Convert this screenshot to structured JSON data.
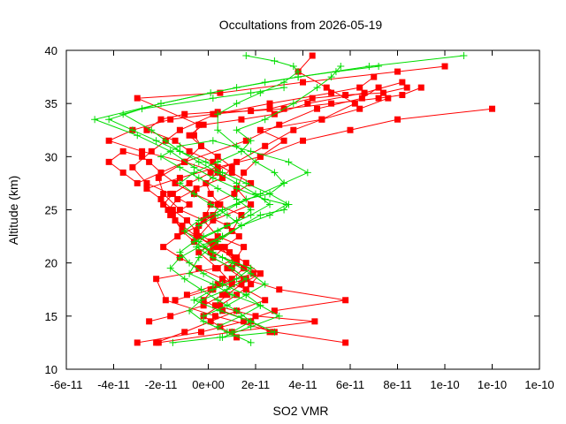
{
  "chart_data": {
    "type": "line",
    "title": "Occultations from 2026-05-19",
    "xlabel": "SO2 VMR",
    "ylabel": "Altitude (km)",
    "xlim": [
      -6e-11,
      1.4e-10
    ],
    "ylim": [
      10,
      40
    ],
    "x_tick_values": [
      -6e-11,
      -4e-11,
      -2e-11,
      0,
      2e-11,
      4e-11,
      6e-11,
      8e-11,
      1e-10,
      1.2e-10,
      1.4e-10
    ],
    "x_tick_labels": [
      "-6e-11",
      "-4e-11",
      "-2e-11",
      "0e+00",
      "2e-11",
      "4e-11",
      "6e-11",
      "8e-11",
      "1e-10",
      "1e-10",
      "1e-10"
    ],
    "y_tick_values": [
      10,
      15,
      20,
      25,
      30,
      35,
      40
    ],
    "y_tick_labels": [
      "10",
      "15",
      "20",
      "25",
      "30",
      "35",
      "40"
    ],
    "grid": false,
    "legend": "none",
    "series": [
      {
        "color": "#ff0000",
        "marker": "square",
        "x": [
          -3e-11,
          -3e-12,
          1.5e-11,
          2.8e-11,
          5.8e-11,
          3e-11,
          1.5e-11,
          8e-12,
          1.2e-11,
          2e-12,
          -4e-12,
          2e-12,
          1.8e-11,
          1.2e-11,
          1.5e-11,
          2.2e-11,
          3.2e-11,
          2.2e-11,
          4.8e-11,
          6.2e-11,
          5e-11,
          3.8e-11,
          4.4e-11
        ],
        "y": [
          12.5,
          13.5,
          14.5,
          15.5,
          16.5,
          17.5,
          18.5,
          19.5,
          20.5,
          21.5,
          22.5,
          24,
          25.5,
          27,
          28.5,
          30,
          31.5,
          32.5,
          33.5,
          35,
          36.5,
          38,
          39.5
        ]
      },
      {
        "color": "#ff0000",
        "marker": "square",
        "x": [
          5.8e-11,
          2.8e-11,
          3e-12,
          -1.8e-11,
          -2.2e-11,
          3e-12,
          1.2e-11,
          1.5e-11,
          4e-12,
          -2e-12,
          -1.2e-11,
          -1.9e-11,
          -2.1e-11,
          -1e-11,
          -3e-12,
          -6e-12,
          -4e-12,
          -3e-11,
          5e-12,
          4e-11,
          8e-11,
          1e-10
        ],
        "y": [
          12.5,
          13.5,
          15,
          16.5,
          18.5,
          19.5,
          20.5,
          21.5,
          22.5,
          24,
          25,
          26.5,
          28,
          29.5,
          31,
          32,
          33,
          35.5,
          36,
          37,
          38,
          38.5
        ]
      },
      {
        "color": "#ff0000",
        "marker": "square",
        "x": [
          -2.1e-11,
          1e-11,
          4.5e-11,
          2e-11,
          3e-12,
          8e-12,
          1.4e-11,
          2.2e-11,
          1.2e-11,
          5e-12,
          -1.1e-11,
          -1.5e-11,
          -8e-12,
          -1.6e-11,
          -2.6e-11,
          -3.2e-11,
          -2.4e-11,
          -1.8e-11,
          -1.2e-11,
          3e-12,
          2.6e-11,
          5.2e-11,
          6.4e-11,
          7e-11
        ],
        "y": [
          12.5,
          13.5,
          14.5,
          15,
          16,
          17,
          18,
          19,
          20,
          21.5,
          23,
          24.5,
          25.5,
          26.5,
          27.5,
          29,
          30.5,
          31.5,
          32.5,
          34,
          35,
          36,
          36.5,
          37.5
        ]
      },
      {
        "color": "#ff0000",
        "marker": "square",
        "x": [
          -2.2e-11,
          -1e-11,
          1e-12,
          1.2e-11,
          2.4e-11,
          1.6e-11,
          6e-12,
          -4e-12,
          -1.2e-11,
          -1.9e-11,
          -1.3e-11,
          -4e-12,
          2e-12,
          5e-12,
          1e-12,
          -1e-12,
          4e-12,
          -1e-11,
          -2.8e-11,
          -4.2e-11,
          -3.2e-11,
          -1.6e-11,
          2e-12,
          2.6e-11,
          4.4e-11,
          5.8e-11,
          7.4e-11,
          8.4e-11
        ],
        "y": [
          12.5,
          13.5,
          14.5,
          15.5,
          16.5,
          17.5,
          18.5,
          19.5,
          20.5,
          21.5,
          22.5,
          23.5,
          24.5,
          25.5,
          26.5,
          27.5,
          28.5,
          29.5,
          30.5,
          31.5,
          32.5,
          33.5,
          34,
          34.5,
          35.5,
          35.8,
          36,
          36.5
        ]
      },
      {
        "color": "#ff0000",
        "marker": "square",
        "x": [
          -2.5e-11,
          -1.6e-11,
          -2e-12,
          6e-12,
          1e-11,
          4e-12,
          -4e-12,
          3e-12,
          1e-11,
          1.4e-11,
          4e-12,
          -6e-12,
          -1.4e-11,
          -2e-11,
          -2.5e-11,
          -2.8e-11,
          -3.6e-11,
          -4.2e-11,
          -3.6e-11,
          -3e-11,
          -1e-11,
          1.6e-11,
          3e-11,
          4.6e-11,
          6.5e-11,
          7.2e-11
        ],
        "y": [
          14.5,
          15,
          16,
          17,
          18,
          19.5,
          21,
          22,
          23,
          24.5,
          25.5,
          26.5,
          27.5,
          28.5,
          29.5,
          30,
          30.5,
          29.5,
          28.5,
          27.5,
          29.5,
          31.5,
          33,
          34.5,
          35.5,
          36.5
        ]
      },
      {
        "color": "#ff0000",
        "marker": "square",
        "x": [
          -1.4e-11,
          1e-12,
          1.6e-11,
          1e-11,
          2e-12,
          7e-12,
          1.3e-11,
          8e-12,
          -1e-12,
          1e-12,
          1.1e-11,
          1.8e-11,
          1e-11,
          2e-12,
          -8e-12,
          -1.4e-11,
          -2.6e-11,
          -2e-11,
          -1e-11,
          4e-12,
          1.8e-11,
          3.2e-11,
          5.2e-11,
          7.2e-11,
          8.2e-11,
          9e-11
        ],
        "y": [
          16.5,
          17.5,
          18.5,
          19.5,
          20.5,
          21.5,
          22.5,
          23.5,
          24.5,
          25.5,
          26.5,
          27.5,
          28.5,
          29.5,
          30.5,
          31.5,
          32.5,
          33.5,
          34,
          34.2,
          34.3,
          34.5,
          35,
          35.5,
          35.8,
          36.5
        ]
      },
      {
        "color": "#ff0000",
        "marker": "square",
        "x": [
          -9e-12,
          4e-12,
          1.9e-11,
          1.2e-11,
          1e-12,
          -6e-12,
          -1.1e-11,
          -1.4e-11,
          -1.7e-11,
          -1.3e-11,
          -5e-12,
          6e-12,
          1e-11,
          4e-12,
          -3e-12,
          -8e-12,
          -2e-12,
          1.4e-11,
          2.8e-11,
          4.2e-11,
          6.6e-11,
          8.2e-11
        ],
        "y": [
          17,
          18,
          19,
          20,
          21,
          22,
          23,
          24,
          25,
          26,
          27,
          28,
          29,
          30,
          31,
          32,
          33,
          33.5,
          34,
          35,
          36,
          37
        ]
      },
      {
        "color": "#ff0000",
        "marker": "square",
        "x": [
          1.2e-11,
          5e-12,
          -2e-12,
          5e-12,
          1.2e-11,
          1.8e-11,
          2.2e-11,
          1.6e-11,
          9e-12,
          1e-12,
          -5e-12,
          -9e-12,
          -1.5e-11,
          -2e-11,
          -2.6e-11,
          -1.2e-11,
          4e-12,
          2.2e-11,
          4e-11,
          6e-11,
          8e-11,
          1.2e-10
        ],
        "y": [
          13,
          14,
          15,
          16,
          17,
          18,
          19,
          20,
          21,
          22,
          23,
          24,
          25,
          26,
          27,
          28,
          29,
          30,
          31.5,
          32.5,
          33.5,
          34.5
        ]
      },
      {
        "color": "#ff0000",
        "marker": "square",
        "x": [
          2.6e-11,
          1.8e-11,
          6e-12,
          -2e-12,
          2e-12,
          1e-11,
          1.5e-11,
          1.1e-11,
          3e-12,
          -5e-12,
          -1.1e-11,
          -1.6e-11,
          -1.9e-11,
          -1.5e-11,
          -8e-12,
          1e-12,
          1.2e-11,
          2.4e-11,
          3.6e-11,
          4.8e-11,
          6.4e-11,
          7.6e-11
        ],
        "y": [
          13.5,
          14.5,
          15.5,
          16.5,
          17.5,
          18.5,
          19.5,
          20.5,
          21.5,
          22.5,
          23.5,
          24.5,
          25.5,
          26.5,
          27.5,
          28.5,
          29.5,
          31,
          32.5,
          33.5,
          34.5,
          35.5
        ]
      },
      {
        "color": "#00dd00",
        "marker": "plus",
        "x": [
          -1.5e-11,
          5e-12,
          2.8e-11,
          1.8e-11,
          5e-12,
          -6e-12,
          2e-12,
          1.2e-11,
          1.8e-11,
          6e-12,
          -2e-12,
          6e-12,
          1.4e-11,
          2.2e-11,
          3.2e-11,
          3.4e-11,
          2.6e-11,
          1.6e-11,
          6e-12,
          -1e-12,
          -1.2e-11,
          -2.2e-11,
          -3.2e-11,
          -4.2e-11,
          -2.8e-11,
          2e-12,
          1.8e-11,
          3.2e-11
        ],
        "y": [
          12.5,
          13,
          13.5,
          14.5,
          15.5,
          16.5,
          17.5,
          18.5,
          19.5,
          20.5,
          21.5,
          22.5,
          23.5,
          24.5,
          25,
          25.5,
          26.5,
          27.5,
          28.5,
          29.5,
          30.5,
          31.5,
          32.5,
          33.5,
          34.5,
          35.5,
          36,
          36.5
        ]
      },
      {
        "color": "#00dd00",
        "marker": "plus",
        "x": [
          6e-12,
          1.8e-11,
          3e-11,
          2.2e-11,
          1e-11,
          2e-12,
          -8e-12,
          -4e-12,
          4e-12,
          1.4e-11,
          2.6e-11,
          3.3e-11,
          2.4e-11,
          1.2e-11,
          2e-12,
          -6e-12,
          -1.6e-11,
          -3e-11,
          -4.8e-11,
          -2e-11,
          1.2e-11,
          3.8e-11,
          6.8e-11,
          1.08e-10
        ],
        "y": [
          13,
          14,
          15,
          16,
          17,
          18,
          19,
          20.5,
          22,
          23.5,
          24.5,
          25.5,
          26,
          27,
          28,
          29,
          30.5,
          32,
          33.5,
          35,
          36.5,
          37.5,
          38.5,
          39.5
        ]
      },
      {
        "color": "#00dd00",
        "marker": "plus",
        "x": [
          1.8e-11,
          8e-12,
          -2e-12,
          -8e-12,
          -3e-12,
          8e-12,
          1.6e-11,
          1e-11,
          2e-12,
          -5e-12,
          -2e-12,
          8e-12,
          1.8e-11,
          2.6e-11,
          2e-11,
          1.2e-11,
          4e-12,
          -4e-12,
          -1.2e-11,
          -1.8e-11,
          -2.4e-11,
          -3.6e-11,
          -2e-11,
          1e-12,
          2.4e-11,
          3.8e-11,
          5.4e-11,
          7.2e-11
        ],
        "y": [
          12.5,
          13.5,
          14.5,
          15.5,
          16.5,
          17.5,
          18.5,
          19.5,
          20.5,
          21.5,
          22.5,
          23.5,
          24.5,
          25.5,
          26.5,
          27.5,
          28.5,
          29.5,
          30.5,
          31.5,
          32.5,
          34,
          35,
          36,
          37,
          37.5,
          38,
          38.5
        ]
      },
      {
        "color": "#00dd00",
        "marker": "plus",
        "x": [
          4e-12,
          1.4e-11,
          2.2e-11,
          1.6e-11,
          6e-12,
          -2e-12,
          -8e-12,
          -1.2e-11,
          -6e-12,
          4e-12,
          1.2e-11,
          1.8e-11,
          1.2e-11,
          4e-12,
          -4e-12,
          -1.2e-11,
          -2e-11,
          -1.2e-11,
          2e-12,
          1.8e-11,
          3.4e-11,
          4.2e-11,
          3.2e-11,
          2.2e-11,
          1.2e-11,
          4e-12,
          -4e-12
        ],
        "y": [
          14,
          15,
          16,
          17,
          18,
          19,
          20,
          21,
          22,
          23,
          24,
          25,
          26,
          27,
          28,
          29,
          30,
          31,
          31.5,
          30.5,
          29.5,
          28.5,
          27.5,
          26.5,
          25.5,
          24.5,
          23.5
        ]
      },
      {
        "color": "#00dd00",
        "marker": "plus",
        "x": [
          -2e-12,
          8e-12,
          1.6e-11,
          2.4e-11,
          1.8e-11,
          1e-11,
          2e-12,
          -4e-12,
          -1e-11,
          -4e-12,
          6e-12,
          1.6e-11,
          2.6e-11,
          3.2e-11,
          2.8e-11,
          2e-11,
          1.2e-11,
          4e-12,
          4e-12,
          1.2e-11,
          2.2e-11,
          3.2e-11,
          3.8e-11,
          3.6e-11,
          2.8e-11,
          1.6e-11
        ],
        "y": [
          15,
          16,
          17,
          18,
          19,
          20,
          21,
          22,
          23,
          24,
          25,
          26,
          26.5,
          27.5,
          28.5,
          29.5,
          31,
          32.5,
          34,
          35,
          36,
          37,
          38,
          38.5,
          39,
          39.5
        ]
      },
      {
        "color": "#00dd00",
        "marker": "plus",
        "x": [
          1e-11,
          1.8e-11,
          1.2e-11,
          4e-12,
          -3e-12,
          -1e-11,
          -1.6e-11,
          -1.2e-11,
          -4e-12,
          6e-12,
          1.4e-11,
          8e-12,
          1e-12,
          -6e-12,
          -1.2e-11,
          -6e-12,
          4e-12,
          1.4e-11,
          1.8e-11,
          1.2e-11,
          2.4e-11,
          3.6e-11,
          4.6e-11,
          5.2e-11,
          5.6e-11
        ],
        "y": [
          13.5,
          14.5,
          15.5,
          16.5,
          17.5,
          18.5,
          19.5,
          20.5,
          21.5,
          22.5,
          23.5,
          24.5,
          25.5,
          26.5,
          27.5,
          28.5,
          29.5,
          30.5,
          31.5,
          32.5,
          33.5,
          35,
          36.5,
          37.5,
          38.5
        ]
      }
    ]
  }
}
